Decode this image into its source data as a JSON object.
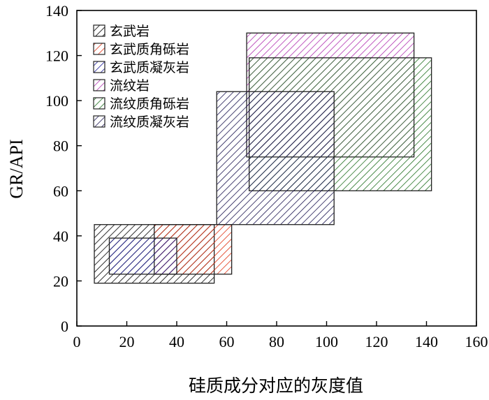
{
  "chart_data": {
    "type": "range-box",
    "title": "",
    "xlabel": "硅质成分对应的灰度值",
    "ylabel": "GR/API",
    "xlim": [
      0,
      160
    ],
    "ylim": [
      0,
      140
    ],
    "xticks": [
      0,
      20,
      40,
      60,
      80,
      100,
      120,
      140,
      160
    ],
    "yticks": [
      0,
      20,
      40,
      60,
      80,
      100,
      120,
      140
    ],
    "grid": false,
    "legend_position": "top-left",
    "series": [
      {
        "name": "玄武岩",
        "color": "#000000",
        "x_range": [
          7,
          55
        ],
        "y_range": [
          19,
          45
        ]
      },
      {
        "name": "玄武质角砾岩",
        "color": "#e03010",
        "x_range": [
          31,
          62
        ],
        "y_range": [
          23,
          45
        ]
      },
      {
        "name": "玄武质凝灰岩",
        "color": "#20209a",
        "x_range": [
          13,
          40
        ],
        "y_range": [
          23,
          39
        ]
      },
      {
        "name": "流纹岩",
        "color": "#b030b0",
        "x_range": [
          68,
          135
        ],
        "y_range": [
          75,
          130
        ]
      },
      {
        "name": "流纹质角砾岩",
        "color": "#207020",
        "x_range": [
          69,
          142
        ],
        "y_range": [
          60,
          119
        ]
      },
      {
        "name": "流纹质凝灰岩",
        "color": "#1a1450",
        "x_range": [
          56,
          103
        ],
        "y_range": [
          45,
          104
        ]
      }
    ]
  }
}
